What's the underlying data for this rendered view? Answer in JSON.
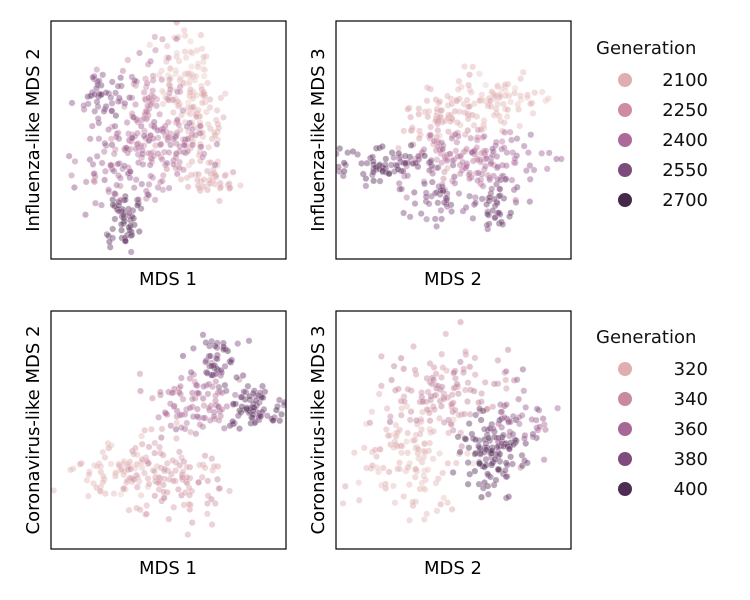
{
  "chart_data": [
    {
      "type": "scatter",
      "panel": "top-left",
      "xlabel": "MDS 1",
      "ylabel": "Influenza-like MDS 2",
      "xlim": [
        -1,
        1
      ],
      "ylim": [
        -1,
        1
      ],
      "grid": false,
      "ticks": "none",
      "color_by": "Generation",
      "color_scale": "influenza",
      "clusters": [
        {
          "name": "c1",
          "gen": 2120,
          "cx": 0.15,
          "cy": 0.55,
          "sx": 0.12,
          "sy": 0.22,
          "n": 80
        },
        {
          "name": "c2",
          "gen": 2200,
          "cx": 0.25,
          "cy": 0.1,
          "sx": 0.12,
          "sy": 0.2,
          "n": 70
        },
        {
          "name": "c3",
          "gen": 2380,
          "cx": -0.15,
          "cy": 0.15,
          "sx": 0.16,
          "sy": 0.3,
          "n": 130
        },
        {
          "name": "c4",
          "gen": 2600,
          "cx": -0.55,
          "cy": 0.35,
          "sx": 0.12,
          "sy": 0.1,
          "n": 50
        },
        {
          "name": "c5",
          "gen": 2700,
          "cx": -0.38,
          "cy": -0.65,
          "sx": 0.07,
          "sy": 0.14,
          "n": 55
        },
        {
          "name": "c6",
          "gen": 2500,
          "cx": -0.45,
          "cy": -0.25,
          "sx": 0.18,
          "sy": 0.18,
          "n": 70
        },
        {
          "name": "c7",
          "gen": 2230,
          "cx": 0.35,
          "cy": -0.35,
          "sx": 0.12,
          "sy": 0.1,
          "n": 40
        },
        {
          "name": "c8",
          "gen": 2450,
          "cx": 0.05,
          "cy": -0.05,
          "sx": 0.22,
          "sy": 0.14,
          "n": 60
        }
      ]
    },
    {
      "type": "scatter",
      "panel": "top-right",
      "xlabel": "MDS 2",
      "ylabel": "Influenza-like MDS 3",
      "xlim": [
        -1,
        1
      ],
      "ylim": [
        -1,
        1
      ],
      "grid": false,
      "ticks": "none",
      "color_by": "Generation",
      "color_scale": "influenza",
      "clusters": [
        {
          "name": "c1",
          "gen": 2150,
          "cx": 0.4,
          "cy": 0.35,
          "sx": 0.22,
          "sy": 0.12,
          "n": 80
        },
        {
          "name": "c2",
          "gen": 2250,
          "cx": -0.1,
          "cy": 0.15,
          "sx": 0.2,
          "sy": 0.14,
          "n": 80
        },
        {
          "name": "c3",
          "gen": 2420,
          "cx": 0.05,
          "cy": -0.15,
          "sx": 0.22,
          "sy": 0.14,
          "n": 100
        },
        {
          "name": "c4",
          "gen": 2680,
          "cx": -0.6,
          "cy": -0.2,
          "sx": 0.18,
          "sy": 0.08,
          "n": 70
        },
        {
          "name": "c5",
          "gen": 2600,
          "cx": -0.15,
          "cy": -0.45,
          "sx": 0.14,
          "sy": 0.14,
          "n": 50
        },
        {
          "name": "c6",
          "gen": 2650,
          "cx": 0.35,
          "cy": -0.55,
          "sx": 0.12,
          "sy": 0.12,
          "n": 45
        },
        {
          "name": "c7",
          "gen": 2500,
          "cx": 0.4,
          "cy": -0.15,
          "sx": 0.18,
          "sy": 0.12,
          "n": 50
        }
      ]
    },
    {
      "type": "scatter",
      "panel": "bottom-left",
      "xlabel": "MDS 1",
      "ylabel": "Coronavirus-like MDS 2",
      "xlim": [
        -1,
        1
      ],
      "ylim": [
        -1,
        1
      ],
      "grid": false,
      "ticks": "none",
      "color_by": "Generation",
      "color_scale": "coronavirus",
      "clusters": [
        {
          "name": "c1",
          "gen": 318,
          "cx": -0.5,
          "cy": -0.35,
          "sx": 0.18,
          "sy": 0.12,
          "n": 60
        },
        {
          "name": "c2",
          "gen": 335,
          "cx": 0.05,
          "cy": -0.4,
          "sx": 0.22,
          "sy": 0.16,
          "n": 120
        },
        {
          "name": "c3",
          "gen": 360,
          "cx": 0.2,
          "cy": 0.25,
          "sx": 0.22,
          "sy": 0.12,
          "n": 90
        },
        {
          "name": "c4",
          "gen": 395,
          "cx": 0.75,
          "cy": 0.2,
          "sx": 0.12,
          "sy": 0.1,
          "n": 70
        },
        {
          "name": "c5",
          "gen": 390,
          "cx": 0.4,
          "cy": 0.55,
          "sx": 0.12,
          "sy": 0.14,
          "n": 50
        }
      ]
    },
    {
      "type": "scatter",
      "panel": "bottom-right",
      "xlabel": "MDS 2",
      "ylabel": "Coronavirus-like MDS 3",
      "xlim": [
        -1,
        1
      ],
      "ylim": [
        -1,
        1
      ],
      "grid": false,
      "ticks": "none",
      "color_by": "Generation",
      "color_scale": "coronavirus",
      "clusters": [
        {
          "name": "c1",
          "gen": 320,
          "cx": -0.35,
          "cy": -0.2,
          "sx": 0.22,
          "sy": 0.24,
          "n": 120
        },
        {
          "name": "c2",
          "gen": 345,
          "cx": -0.05,
          "cy": 0.3,
          "sx": 0.26,
          "sy": 0.2,
          "n": 120
        },
        {
          "name": "c3",
          "gen": 398,
          "cx": 0.35,
          "cy": -0.2,
          "sx": 0.16,
          "sy": 0.18,
          "n": 120
        },
        {
          "name": "c4",
          "gen": 370,
          "cx": 0.55,
          "cy": 0.1,
          "sx": 0.14,
          "sy": 0.16,
          "n": 40
        }
      ]
    }
  ],
  "color_scales": {
    "influenza": {
      "min": 2050,
      "max": 2750,
      "stops": [
        "#ebd1cb",
        "#e0aeae",
        "#cc8da2",
        "#a9679a",
        "#7f4b80",
        "#4d2b4f"
      ]
    },
    "coronavirus": {
      "min": 300,
      "max": 410,
      "stops": [
        "#ebd1cb",
        "#e0aeae",
        "#c98a9f",
        "#a46495",
        "#77447a",
        "#4a2a4d"
      ]
    }
  },
  "legends": {
    "influenza": {
      "title": "Generation",
      "entries": [
        {
          "label": "2100",
          "color": "#e0aeae"
        },
        {
          "label": "2250",
          "color": "#cf8ca0"
        },
        {
          "label": "2400",
          "color": "#ad6a98"
        },
        {
          "label": "2550",
          "color": "#7d4c7c"
        },
        {
          "label": "2700",
          "color": "#45294a"
        }
      ]
    },
    "coronavirus": {
      "title": "Generation",
      "entries": [
        {
          "label": "320",
          "color": "#e0aeae"
        },
        {
          "label": "340",
          "color": "#c98a9f"
        },
        {
          "label": "360",
          "color": "#a86897"
        },
        {
          "label": "380",
          "color": "#7d4c7c"
        },
        {
          "label": "400",
          "color": "#4e2c54"
        }
      ]
    }
  }
}
